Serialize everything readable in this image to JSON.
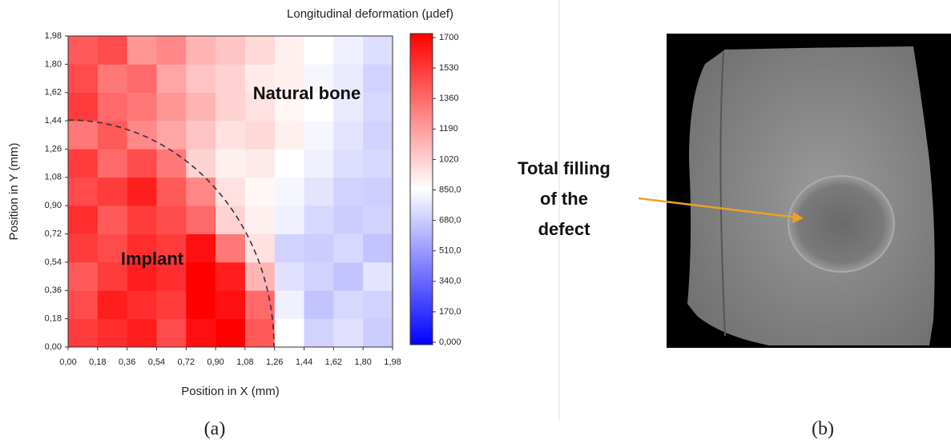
{
  "chart_data": {
    "type": "heatmap",
    "title": "Longitudinal deformation (µdef)",
    "xlabel": "Position in X (mm)",
    "ylabel": "Position in Y (mm)",
    "xlim": [
      0,
      1.98
    ],
    "ylim": [
      0,
      1.98
    ],
    "xticks": [
      {
        "value": 0,
        "label": "0,00"
      },
      {
        "value": 0.18,
        "label": "0,18"
      },
      {
        "value": 0.36,
        "label": "0,36"
      },
      {
        "value": 0.54,
        "label": "0,54"
      },
      {
        "value": 0.72,
        "label": "0,72"
      },
      {
        "value": 0.9,
        "label": "0,90"
      },
      {
        "value": 1.08,
        "label": "1,08"
      },
      {
        "value": 1.26,
        "label": "1,26"
      },
      {
        "value": 1.44,
        "label": "1,44"
      },
      {
        "value": 1.62,
        "label": "1,62"
      },
      {
        "value": 1.8,
        "label": "1,80"
      },
      {
        "value": 1.98,
        "label": "1,98"
      }
    ],
    "yticks": [
      {
        "value": 0,
        "label": "0,00"
      },
      {
        "value": 0.18,
        "label": "0,18"
      },
      {
        "value": 0.36,
        "label": "0,36"
      },
      {
        "value": 0.54,
        "label": "0,54"
      },
      {
        "value": 0.72,
        "label": "0,72"
      },
      {
        "value": 0.9,
        "label": "0,90"
      },
      {
        "value": 1.08,
        "label": "1,08"
      },
      {
        "value": 1.26,
        "label": "1,26"
      },
      {
        "value": 1.44,
        "label": "1,44"
      },
      {
        "value": 1.62,
        "label": "1,62"
      },
      {
        "value": 1.8,
        "label": "1,80"
      },
      {
        "value": 1.98,
        "label": "1,98"
      }
    ],
    "z": [
      [
        1500,
        1550,
        1600,
        1450,
        1650,
        1700,
        1400,
        850,
        700,
        750,
        680
      ],
      [
        1450,
        1600,
        1550,
        1500,
        1700,
        1650,
        1350,
        800,
        650,
        720,
        700
      ],
      [
        1400,
        1500,
        1600,
        1550,
        1700,
        1600,
        1100,
        750,
        700,
        650,
        760
      ],
      [
        1500,
        1450,
        1550,
        1500,
        1650,
        1300,
        950,
        700,
        680,
        720,
        650
      ],
      [
        1550,
        1400,
        1500,
        1450,
        1350,
        1000,
        900,
        800,
        720,
        680,
        700
      ],
      [
        1450,
        1500,
        1600,
        1400,
        1250,
        950,
        880,
        820,
        760,
        700,
        690
      ],
      [
        1500,
        1350,
        1450,
        1300,
        1000,
        900,
        920,
        850,
        800,
        740,
        720
      ],
      [
        1300,
        1400,
        1250,
        1150,
        1050,
        950,
        980,
        900,
        820,
        760,
        700
      ],
      [
        1500,
        1350,
        1300,
        1200,
        1100,
        1000,
        950,
        880,
        850,
        780,
        720
      ],
      [
        1450,
        1300,
        1350,
        1150,
        1050,
        1000,
        920,
        900,
        820,
        780,
        700
      ],
      [
        1400,
        1450,
        1200,
        1250,
        1100,
        1050,
        980,
        900,
        850,
        800,
        740
      ]
    ],
    "zlim": [
      0,
      1700
    ],
    "zticks": [
      {
        "value": 0,
        "label": "0,000"
      },
      {
        "value": 170,
        "label": "170,0"
      },
      {
        "value": 340,
        "label": "340,0"
      },
      {
        "value": 510,
        "label": "510,0"
      },
      {
        "value": 680,
        "label": "680,0"
      },
      {
        "value": 850,
        "label": "850,0"
      },
      1020,
      1190,
      1360,
      1530,
      1700
    ],
    "colors": [
      "#0000ff",
      "#ffffff",
      "#ff0000"
    ],
    "annotations": [
      "Natural bone",
      "Implant"
    ]
  },
  "panel_labels": [
    "(a)",
    "(b)"
  ],
  "figure_b": {
    "annotation": [
      "Total filling",
      "of the",
      "defect"
    ]
  }
}
